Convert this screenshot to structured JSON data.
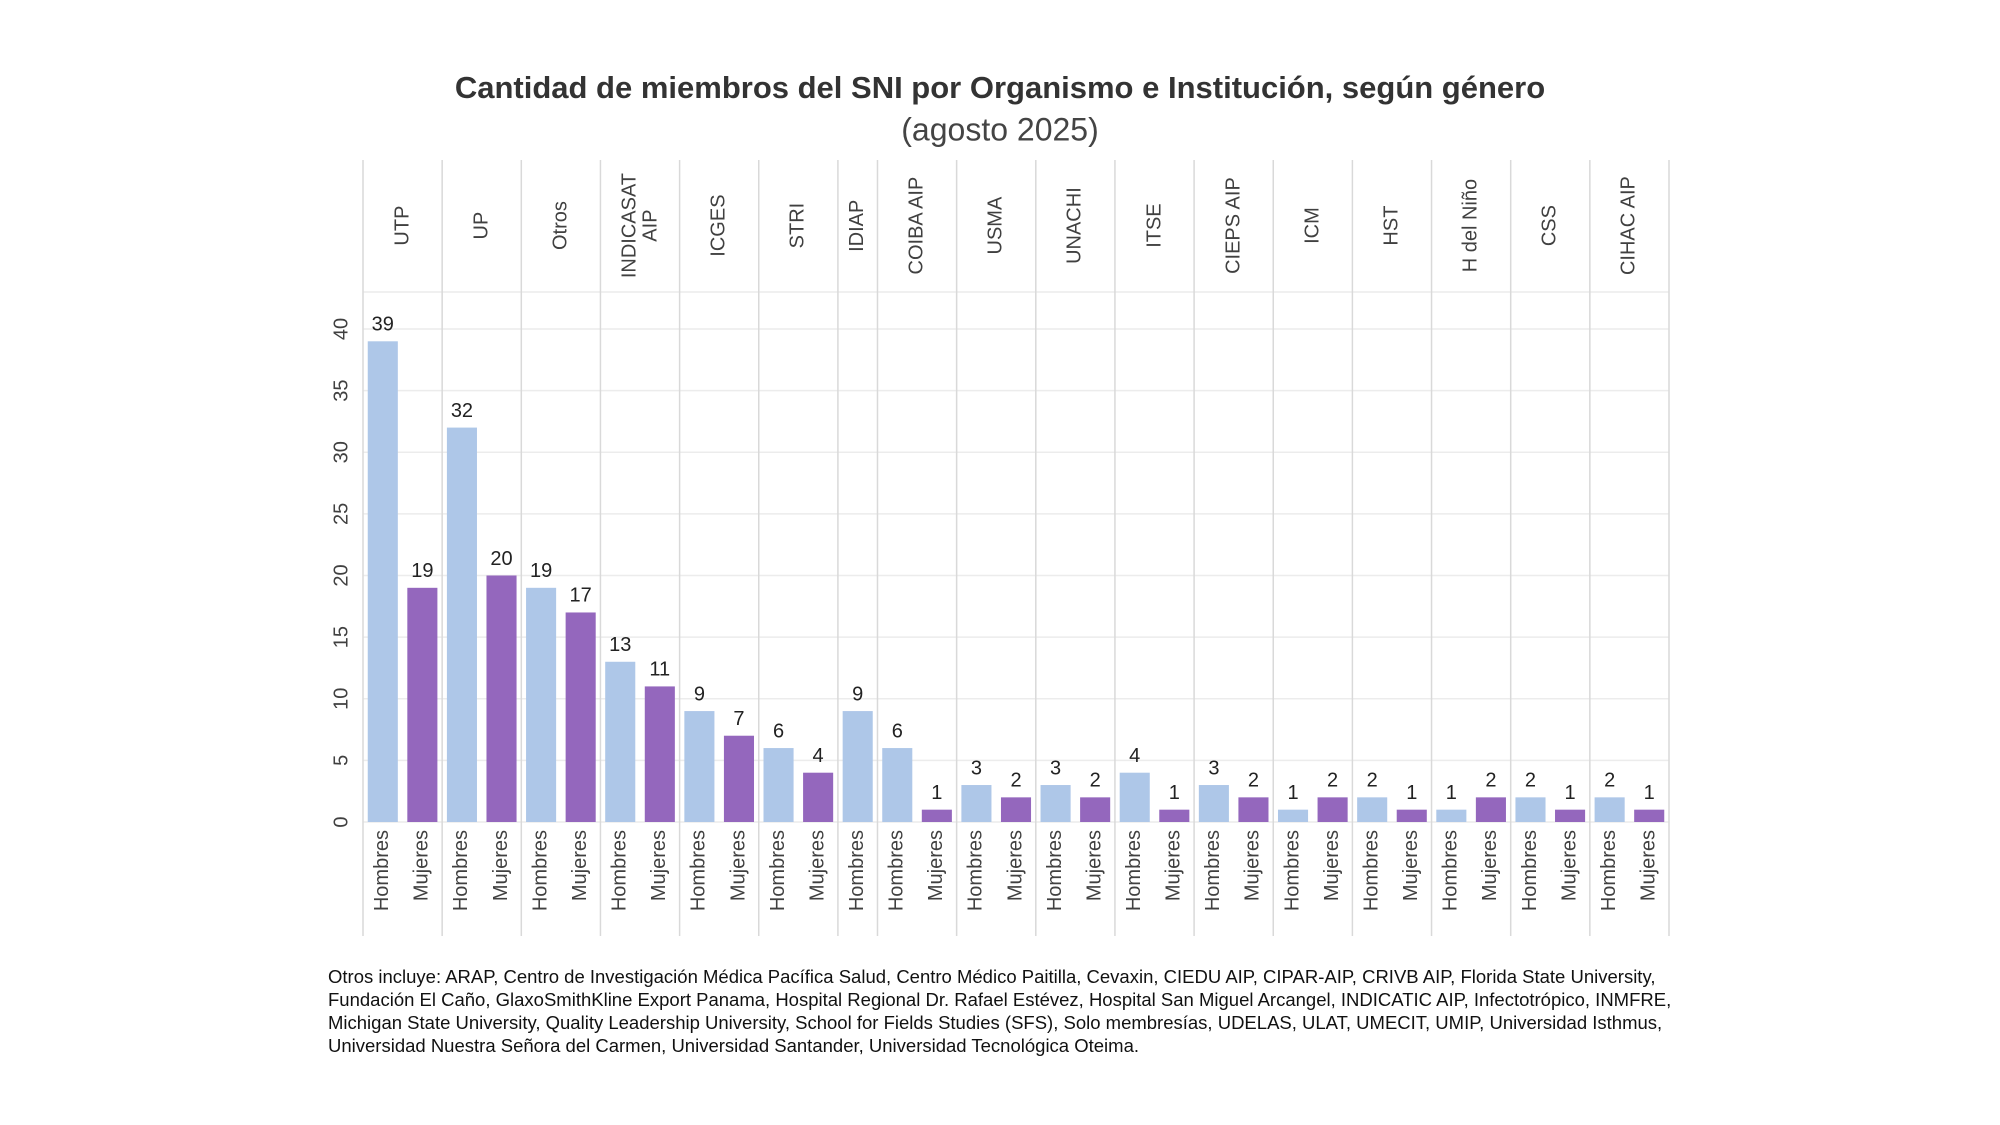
{
  "chart_data": {
    "type": "bar",
    "title": "Cantidad de miembros del SNI por Organismo e Institución, según género",
    "subtitle": "(agosto 2025)",
    "groups": [
      "UTP",
      "UP",
      "Otros",
      "INDICASAT AIP",
      "ICGES",
      "STRI",
      "IDIAP",
      "COIBA AIP",
      "USMA",
      "UNACHI",
      "ITSE",
      "CIEPS AIP",
      "ICM",
      "HST",
      "H del Niño",
      "CSS",
      "CIHAC AIP"
    ],
    "series": [
      {
        "name": "Hombres",
        "color": "#aec7e8",
        "values": [
          39,
          32,
          19,
          13,
          9,
          6,
          9,
          6,
          3,
          3,
          4,
          3,
          1,
          2,
          1,
          2,
          2
        ]
      },
      {
        "name": "Mujeres",
        "color": "#9467bd",
        "values": [
          19,
          20,
          17,
          11,
          7,
          4,
          null,
          1,
          2,
          2,
          1,
          2,
          2,
          1,
          2,
          1,
          1
        ]
      }
    ],
    "ylim": [
      0,
      43
    ],
    "yticks": [
      0,
      5,
      10,
      15,
      20,
      25,
      30,
      35,
      40
    ],
    "grid": true,
    "note": "Otros incluye: ARAP, Centro de Investigación Médica Pacífica Salud, Centro Médico Paitilla, Cevaxin, CIEDU AIP, CIPAR-AIP, CRIVB AIP, Florida State University, Fundación El Caño, GlaxoSmithKline Export Panama, Hospital Regional Dr. Rafael Estévez, Hospital San Miguel Arcangel, INDICATIC AIP, Infectotrópico, INMFRE, Michigan State University, Quality Leadership University, School for Fields Studies (SFS), Solo membresías, UDELAS, ULAT, UMECIT, UMIP, Universidad Isthmus, Universidad Nuestra Señora del Carmen, Universidad Santander, Universidad Tecnológica Oteima."
  }
}
